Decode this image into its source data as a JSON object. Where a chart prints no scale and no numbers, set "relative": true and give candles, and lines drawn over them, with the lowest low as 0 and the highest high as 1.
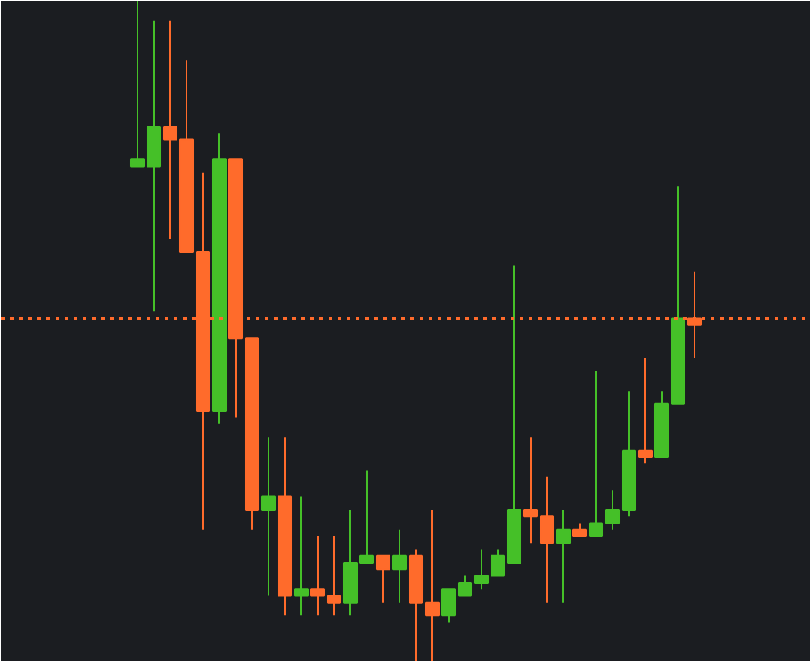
{
  "chart_data": {
    "type": "candlestick",
    "relative": true,
    "categories": [
      null,
      null,
      null,
      null,
      null,
      null,
      null,
      null,
      null,
      null,
      null,
      null,
      null,
      null,
      null,
      null,
      null,
      null,
      null,
      null,
      null,
      null,
      null,
      null,
      null,
      null,
      null,
      null,
      null,
      null,
      null,
      null,
      null,
      null,
      null
    ],
    "ohlc": [
      [
        0.75,
        1.0,
        0.75,
        0.76
      ],
      [
        0.75,
        0.97,
        0.53,
        0.81
      ],
      [
        0.81,
        0.97,
        0.64,
        0.79
      ],
      [
        0.79,
        0.91,
        0.62,
        0.62
      ],
      [
        0.62,
        0.74,
        0.2,
        0.38
      ],
      [
        0.38,
        0.8,
        0.36,
        0.76
      ],
      [
        0.76,
        0.76,
        0.37,
        0.49
      ],
      [
        0.49,
        0.49,
        0.2,
        0.23
      ],
      [
        0.23,
        0.34,
        0.1,
        0.25
      ],
      [
        0.25,
        0.34,
        0.07,
        0.1
      ],
      [
        0.1,
        0.25,
        0.07,
        0.11
      ],
      [
        0.11,
        0.19,
        0.07,
        0.1
      ],
      [
        0.1,
        0.19,
        0.07,
        0.09
      ],
      [
        0.09,
        0.23,
        0.07,
        0.15
      ],
      [
        0.15,
        0.29,
        0.15,
        0.16
      ],
      [
        0.16,
        0.16,
        0.09,
        0.14
      ],
      [
        0.14,
        0.2,
        0.09,
        0.16
      ],
      [
        0.16,
        0.17,
        0.0,
        0.09
      ],
      [
        0.09,
        0.23,
        0.0,
        0.07
      ],
      [
        0.07,
        0.11,
        0.06,
        0.11
      ],
      [
        0.1,
        0.13,
        0.1,
        0.12
      ],
      [
        0.12,
        0.17,
        0.11,
        0.13
      ],
      [
        0.13,
        0.17,
        0.13,
        0.16
      ],
      [
        0.15,
        0.6,
        0.15,
        0.23
      ],
      [
        0.23,
        0.34,
        0.18,
        0.22
      ],
      [
        0.22,
        0.28,
        0.09,
        0.18
      ],
      [
        0.18,
        0.23,
        0.09,
        0.2
      ],
      [
        0.2,
        0.21,
        0.19,
        0.19
      ],
      [
        0.19,
        0.44,
        0.19,
        0.21
      ],
      [
        0.21,
        0.26,
        0.2,
        0.23
      ],
      [
        0.23,
        0.41,
        0.22,
        0.32
      ],
      [
        0.32,
        0.46,
        0.3,
        0.31
      ],
      [
        0.31,
        0.41,
        0.31,
        0.39
      ],
      [
        0.39,
        0.72,
        0.39,
        0.52
      ],
      [
        0.52,
        0.59,
        0.46,
        0.51
      ]
    ],
    "colors": [
      "#45c028",
      "#45c028",
      "#ff6b2b",
      "#ff6b2b",
      "#ff6b2b",
      "#45c028",
      "#ff6b2b",
      "#ff6b2b",
      "#45c028",
      "#ff6b2b",
      "#45c028",
      "#ff6b2b",
      "#ff6b2b",
      "#45c028",
      "#45c028",
      "#ff6b2b",
      "#45c028",
      "#ff6b2b",
      "#ff6b2b",
      "#45c028",
      "#45c028",
      "#45c028",
      "#45c028",
      "#45c028",
      "#ff6b2b",
      "#ff6b2b",
      "#45c028",
      "#ff6b2b",
      "#45c028",
      "#45c028",
      "#45c028",
      "#ff6b2b",
      "#45c028",
      "#45c028",
      "#ff6b2b"
    ],
    "ref_lines": [
      {
        "axis": "y",
        "value": 0.52,
        "color": "#ff6b2b",
        "line_style": "dotted"
      }
    ]
  }
}
